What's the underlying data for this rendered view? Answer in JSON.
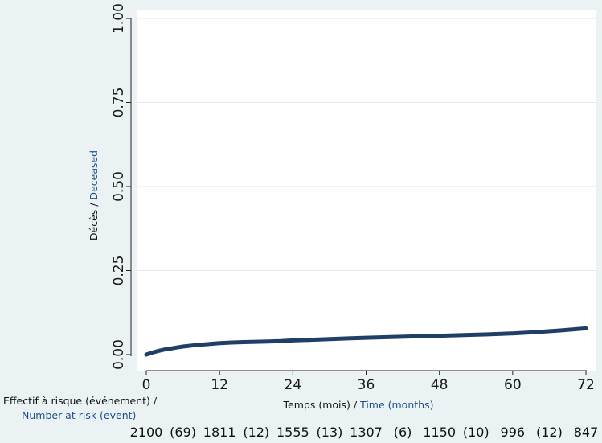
{
  "colors": {
    "background": "#eaf2f3",
    "plot_area": "#ffffff",
    "curve": "#1f3f66",
    "label_black": "#111111",
    "label_blue": "#1f4e8c"
  },
  "chart_data": {
    "type": "line",
    "title": "",
    "xlabel_fr": "Temps (mois) /",
    "xlabel_en": "Time (months)",
    "ylabel_fr": "Décès /",
    "ylabel_en": "Deceased",
    "xlim": [
      0,
      72
    ],
    "ylim": [
      0,
      1
    ],
    "xticks": [
      0,
      12,
      24,
      36,
      48,
      60,
      72
    ],
    "yticks": [
      0,
      0.25,
      0.5,
      0.75,
      1
    ],
    "ytick_labels": [
      "0.00",
      "0.25",
      "0.50",
      "0.75",
      "1.00"
    ],
    "grid": "horizontal",
    "series": [
      {
        "x": [
          0,
          1,
          2,
          3,
          4,
          5,
          6,
          8,
          10,
          12,
          14,
          16,
          18,
          20,
          22,
          24,
          27,
          30,
          33,
          36,
          40,
          44,
          48,
          52,
          56,
          60,
          64,
          68,
          72
        ],
        "y": [
          0.0,
          0.006,
          0.011,
          0.015,
          0.018,
          0.021,
          0.024,
          0.028,
          0.031,
          0.034,
          0.036,
          0.037,
          0.038,
          0.039,
          0.04,
          0.042,
          0.044,
          0.046,
          0.048,
          0.05,
          0.052,
          0.054,
          0.056,
          0.058,
          0.06,
          0.063,
          0.067,
          0.072,
          0.078
        ]
      }
    ],
    "risk_table": {
      "label_fr": "Effectif à risque (événement) /",
      "label_en": "Number at risk (event)",
      "at_risk": [
        "2100",
        "1811",
        "1555",
        "1307",
        "1150",
        "996",
        "847"
      ],
      "events": [
        "(69)",
        "(12)",
        "(13)",
        "(6)",
        "(10)",
        "(12)"
      ]
    }
  }
}
